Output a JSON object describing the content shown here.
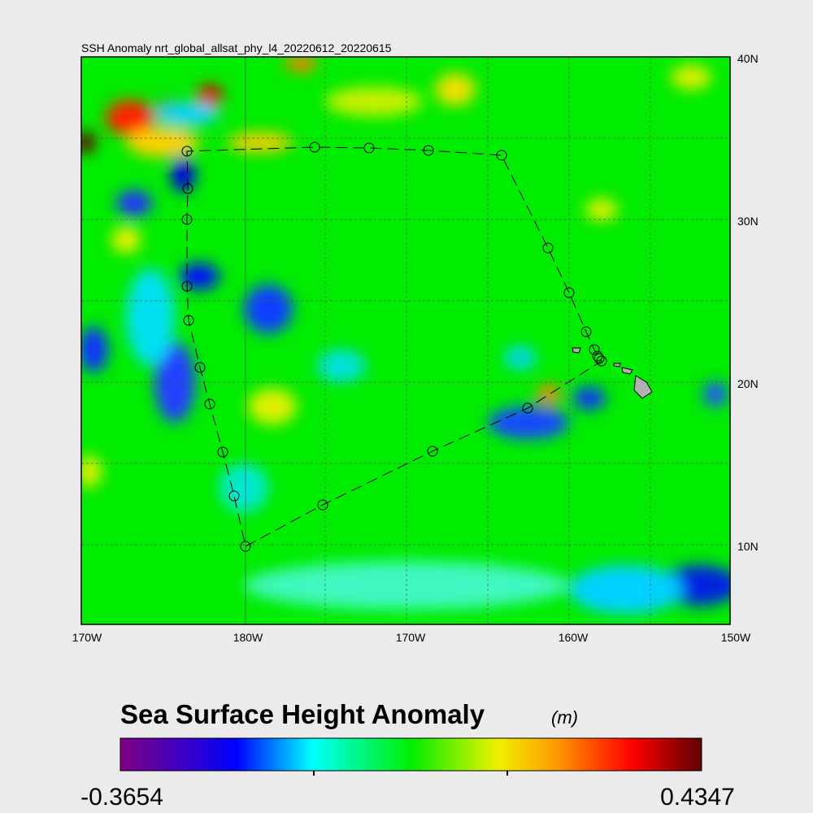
{
  "map": {
    "title": "SSH Anomaly nrt_global_allsat_phy_l4_20220612_20220615",
    "x_labels": [
      "170W",
      "180W",
      "170W",
      "160W",
      "150W"
    ],
    "y_labels": [
      "40N",
      "30N",
      "20N",
      "10N"
    ]
  },
  "colorbar": {
    "title": "Sea Surface Height Anomaly",
    "unit": "(m)",
    "min_label": "-0.3654",
    "max_label": "0.4347"
  }
}
